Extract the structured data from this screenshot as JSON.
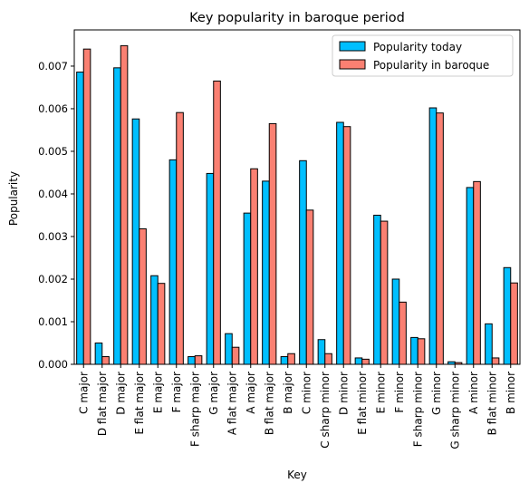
{
  "chart_data": {
    "type": "bar",
    "title": "Key popularity in baroque period",
    "xlabel": "Key",
    "ylabel": "Popularity",
    "ylim": [
      0,
      0.00785
    ],
    "yticks": [
      "0.000",
      "0.001",
      "0.002",
      "0.003",
      "0.004",
      "0.005",
      "0.006",
      "0.007"
    ],
    "grid": false,
    "legend_position": "top-right",
    "categories": [
      "C major",
      "D flat major",
      "D major",
      "E flat major",
      "E major",
      "F major",
      "F sharp major",
      "G major",
      "A flat major",
      "A major",
      "B flat major",
      "B major",
      "C minor",
      "C sharp minor",
      "D minor",
      "E flat minor",
      "E minor",
      "F minor",
      "F sharp minor",
      "G minor",
      "G sharp minor",
      "A minor",
      "B flat minor",
      "B minor"
    ],
    "series": [
      {
        "name": "Popularity today",
        "color": "#00bfff",
        "values": [
          0.00686,
          0.0005,
          0.00696,
          0.00576,
          0.00208,
          0.0048,
          0.00018,
          0.00448,
          0.00072,
          0.00355,
          0.0043,
          0.00018,
          0.00478,
          0.00058,
          0.00568,
          0.00015,
          0.0035,
          0.002,
          0.00063,
          0.00602,
          6e-05,
          0.00415,
          0.00095,
          0.00227
        ]
      },
      {
        "name": "Popularity in baroque",
        "color": "#fa8072",
        "values": [
          0.0074,
          0.00018,
          0.00748,
          0.00318,
          0.0019,
          0.00591,
          0.0002,
          0.00665,
          0.0004,
          0.00459,
          0.00565,
          0.00025,
          0.00362,
          0.00025,
          0.00558,
          0.00012,
          0.00336,
          0.00146,
          0.0006,
          0.0059,
          4e-05,
          0.00429,
          0.00015,
          0.00191
        ]
      }
    ]
  }
}
